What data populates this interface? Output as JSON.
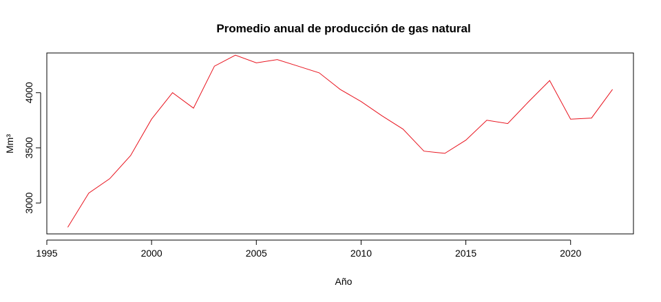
{
  "chart_data": {
    "type": "line",
    "title": "Promedio anual de producción de gas natural",
    "xlabel": "Año",
    "ylabel": "Mm³",
    "xlim": [
      1995,
      2023
    ],
    "ylim": [
      2720,
      4360
    ],
    "x_ticks": [
      1995,
      2000,
      2005,
      2010,
      2015,
      2020
    ],
    "x_tick_labels": [
      "1995",
      "2000",
      "2005",
      "2010",
      "2015",
      "2020"
    ],
    "y_ticks": [
      3000,
      3500,
      4000
    ],
    "y_tick_labels": [
      "3000",
      "3500",
      "4000"
    ],
    "grid": false,
    "line_color": "#e8111c",
    "series": [
      {
        "x": [
          1996,
          1997,
          1998,
          1999,
          2000,
          2001,
          2002,
          2003,
          2004,
          2005,
          2006,
          2007,
          2008,
          2009,
          2010,
          2011,
          2012,
          2013,
          2014,
          2015,
          2016,
          2017,
          2018,
          2019,
          2020,
          2021,
          2022
        ],
        "values": [
          2780,
          3090,
          3220,
          3430,
          3760,
          4000,
          3860,
          4240,
          4340,
          4270,
          4300,
          4240,
          4180,
          4030,
          3920,
          3790,
          3670,
          3470,
          3450,
          3570,
          3750,
          3720,
          3920,
          4110,
          3760,
          3770,
          4030
        ]
      }
    ]
  }
}
